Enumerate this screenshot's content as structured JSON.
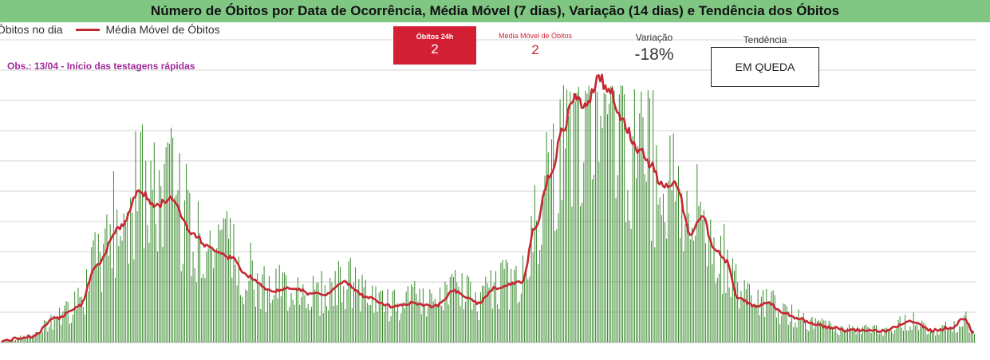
{
  "title": "Número de Óbitos por Data de Ocorrência, Média Móvel (7 dias), Variação (14 dias) e Tendência dos Óbitos",
  "legend": {
    "bars": "Óbitos no dia",
    "line": "Média Móvel de Óbitos"
  },
  "note": "Obs.: 13/04 - Início das testagens rápidas",
  "kpis": {
    "obitos24h": {
      "label": "Óbitos 24h",
      "value": "2"
    },
    "media_movel": {
      "label": "Média Móvel de Óbitos",
      "value": "2"
    },
    "variacao": {
      "label": "Variação",
      "value": "-18%"
    },
    "tendencia": {
      "label": "Tendência",
      "value": "EM QUEDA"
    }
  },
  "colors": {
    "title_bg": "#81c784",
    "bars": "#3a8a2e",
    "line": "#c62834",
    "kpi_red": "#d21f34",
    "note": "#a3299b",
    "grid": "#d6d6d6"
  },
  "chart_data": {
    "type": "bar",
    "title": "Número de Óbitos por Data de Ocorrência, Média Móvel (7 dias), Variação (14 dias) e Tendência dos Óbitos",
    "xlabel": "",
    "ylabel": "",
    "ylim": [
      0,
      100
    ],
    "grid": true,
    "legend_position": "top-left",
    "series": [
      {
        "name": "Óbitos no dia",
        "type": "bar"
      },
      {
        "name": "Média Móvel de Óbitos",
        "type": "line"
      }
    ],
    "moving_average_keypoints": [
      [
        0,
        0.5
      ],
      [
        40,
        2
      ],
      [
        70,
        8
      ],
      [
        100,
        12
      ],
      [
        120,
        25
      ],
      [
        150,
        38
      ],
      [
        175,
        50
      ],
      [
        195,
        45
      ],
      [
        215,
        48
      ],
      [
        240,
        36
      ],
      [
        265,
        31
      ],
      [
        290,
        28
      ],
      [
        310,
        22
      ],
      [
        340,
        17
      ],
      [
        370,
        18
      ],
      [
        390,
        16
      ],
      [
        410,
        16
      ],
      [
        430,
        20
      ],
      [
        460,
        15
      ],
      [
        490,
        12
      ],
      [
        520,
        13
      ],
      [
        545,
        12
      ],
      [
        570,
        17
      ],
      [
        600,
        13
      ],
      [
        620,
        18
      ],
      [
        655,
        20
      ],
      [
        670,
        38
      ],
      [
        690,
        55
      ],
      [
        705,
        70
      ],
      [
        720,
        81
      ],
      [
        735,
        78
      ],
      [
        750,
        88
      ],
      [
        765,
        83
      ],
      [
        780,
        73
      ],
      [
        800,
        64
      ],
      [
        815,
        59
      ],
      [
        830,
        52
      ],
      [
        848,
        52
      ],
      [
        865,
        36
      ],
      [
        880,
        42
      ],
      [
        895,
        31
      ],
      [
        910,
        27
      ],
      [
        925,
        15
      ],
      [
        945,
        12
      ],
      [
        965,
        13
      ],
      [
        980,
        10
      ],
      [
        1000,
        8
      ],
      [
        1020,
        6
      ],
      [
        1040,
        5
      ],
      [
        1060,
        4
      ],
      [
        1080,
        4
      ],
      [
        1110,
        4
      ],
      [
        1140,
        7
      ],
      [
        1170,
        4
      ],
      [
        1195,
        5
      ],
      [
        1208,
        8
      ],
      [
        1222,
        3
      ]
    ],
    "daily_max": 85,
    "last_value": 2
  }
}
